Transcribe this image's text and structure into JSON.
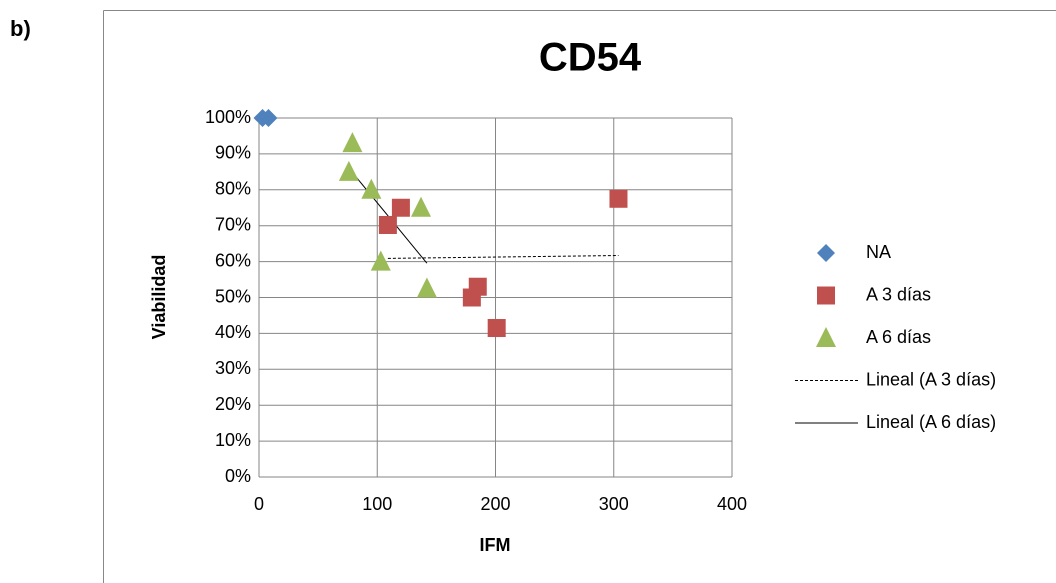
{
  "panel_label": "b)",
  "chart_data": {
    "type": "scatter",
    "title": "CD54",
    "x_label": "IFM",
    "y_label": "Viabilidad",
    "xlim": [
      0,
      400
    ],
    "xticks": [
      0,
      100,
      200,
      300,
      400
    ],
    "ylim": [
      0,
      100
    ],
    "yticks": [
      {
        "value": 0,
        "label": "0%"
      },
      {
        "value": 10,
        "label": "10%"
      },
      {
        "value": 20,
        "label": "20%"
      },
      {
        "value": 30,
        "label": "30%"
      },
      {
        "value": 40,
        "label": "40%"
      },
      {
        "value": 50,
        "label": "50%"
      },
      {
        "value": 60,
        "label": "60%"
      },
      {
        "value": 70,
        "label": "70%"
      },
      {
        "value": 80,
        "label": "80%"
      },
      {
        "value": 90,
        "label": "90%"
      },
      {
        "value": 100,
        "label": "100%"
      }
    ],
    "grid": true,
    "legend": "right",
    "series": [
      {
        "name": "NA",
        "color": "#4f81bd",
        "marker": "diamond",
        "x": [
          3,
          8
        ],
        "values": [
          100,
          100
        ]
      },
      {
        "name": "A 3 días",
        "color": "#c0504d",
        "marker": "square",
        "x": [
          109,
          120,
          180,
          185,
          201,
          304
        ],
        "values": [
          70.2,
          75,
          50,
          53,
          41.5,
          77.5
        ],
        "trendline": {
          "name": "Lineal (A 3 días)",
          "style": "dashed"
        }
      },
      {
        "name": "A 6 días",
        "color": "#9bbb59",
        "marker": "triangle",
        "x": [
          79,
          76,
          95,
          103,
          137,
          142
        ],
        "values": [
          93,
          85,
          80,
          60,
          75,
          52.5
        ],
        "trendline": {
          "name": "Lineal (A 6 días)",
          "style": "solid"
        }
      }
    ]
  }
}
